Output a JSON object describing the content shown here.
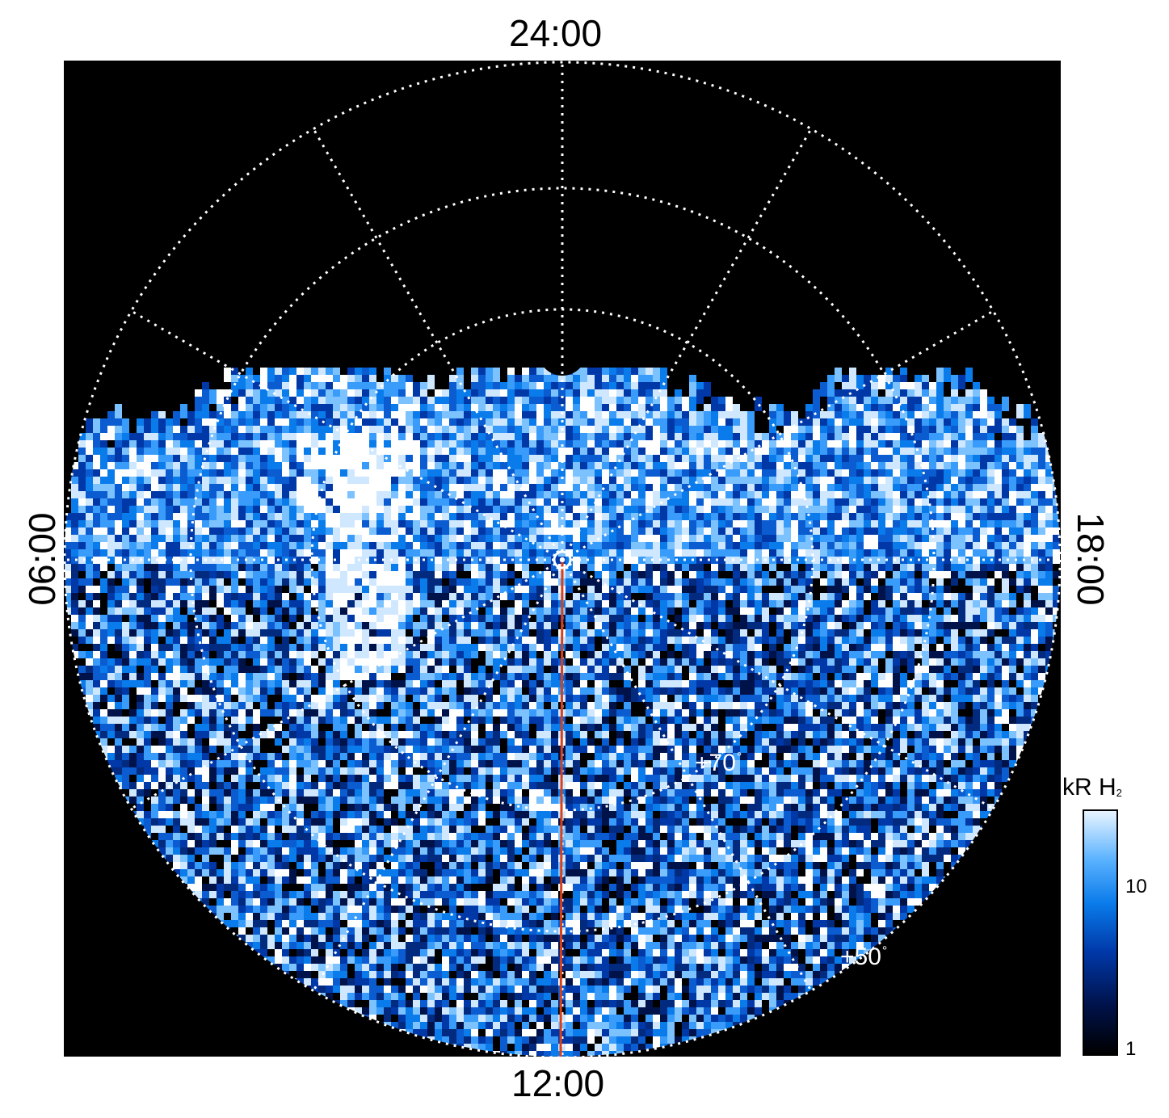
{
  "local_time_labels": {
    "top": "24:00",
    "bottom": "12:00",
    "left": "06:00",
    "right": "18:00"
  },
  "latitude_labels": {
    "inner": "+70",
    "outer": "+50",
    "degree_symbol": "°"
  },
  "colorbar": {
    "title_main": "kR H",
    "title_sub": "2",
    "ticks": [
      "10",
      "1"
    ],
    "scale": "log"
  },
  "colors": {
    "background": "#000000",
    "grid": "#ffffff",
    "meridian_line": "#d9401a",
    "aurora_low": "#00124a",
    "aurora_mid": "#0a7bea",
    "aurora_high": "#e8f4ff"
  }
}
